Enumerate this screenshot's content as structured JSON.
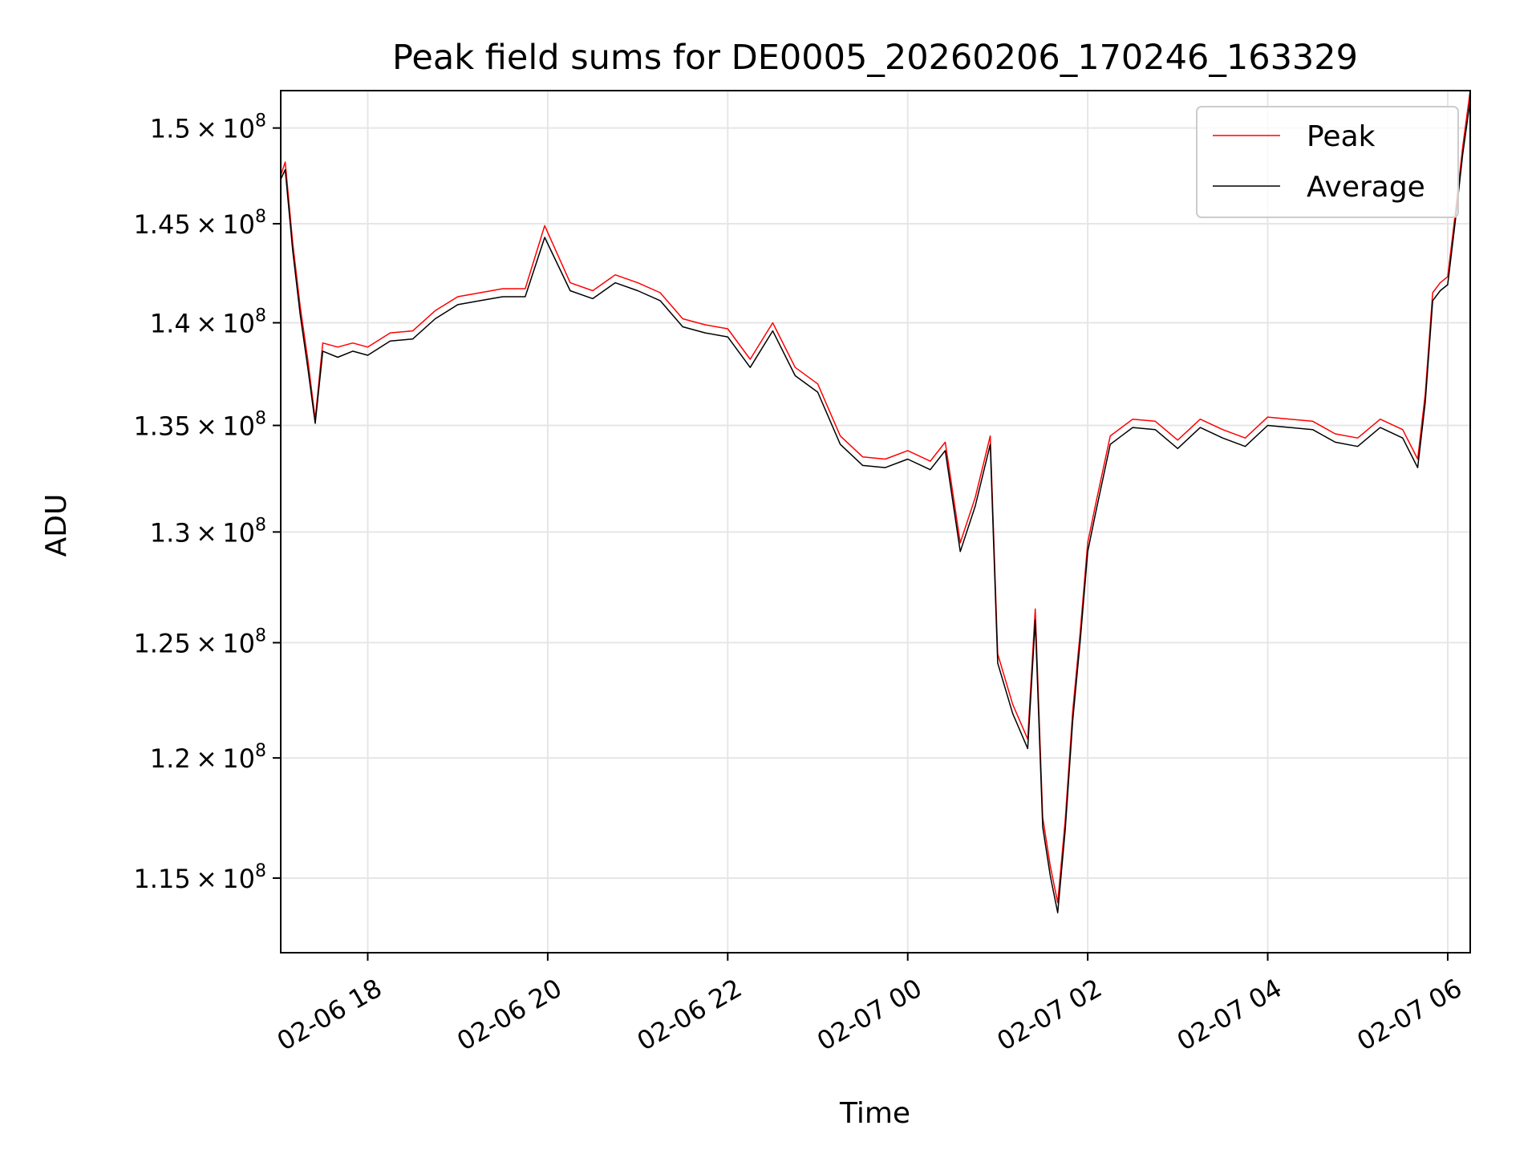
{
  "chart_data": {
    "type": "line",
    "title": "Peak field sums for DE0005_20260206_170246_163329",
    "xlabel": "Time",
    "ylabel": "ADU",
    "xlim": [
      "2026-02-06 17:02",
      "2026-02-07 06:15"
    ],
    "ylim": [
      112000000,
      152000000
    ],
    "y_scale": "log",
    "grid": true,
    "legend_position": "upper-right",
    "x_ticks": [
      {
        "value": "2026-02-06 18:00",
        "label": "02-06 18"
      },
      {
        "value": "2026-02-06 20:00",
        "label": "02-06 20"
      },
      {
        "value": "2026-02-06 22:00",
        "label": "02-06 22"
      },
      {
        "value": "2026-02-07 00:00",
        "label": "02-07 00"
      },
      {
        "value": "2026-02-07 02:00",
        "label": "02-07 02"
      },
      {
        "value": "2026-02-07 04:00",
        "label": "02-07 04"
      },
      {
        "value": "2026-02-07 06:00",
        "label": "02-07 06"
      }
    ],
    "y_ticks": [
      {
        "value": 115000000,
        "mantissa": "1.15",
        "exponent": "8"
      },
      {
        "value": 120000000,
        "mantissa": "1.2",
        "exponent": "8"
      },
      {
        "value": 125000000,
        "mantissa": "1.25",
        "exponent": "8"
      },
      {
        "value": 130000000,
        "mantissa": "1.3",
        "exponent": "8"
      },
      {
        "value": 135000000,
        "mantissa": "1.35",
        "exponent": "8"
      },
      {
        "value": 140000000,
        "mantissa": "1.4",
        "exponent": "8"
      },
      {
        "value": 145000000,
        "mantissa": "1.45",
        "exponent": "8"
      },
      {
        "value": 150000000,
        "mantissa": "1.5",
        "exponent": "8"
      }
    ],
    "series": [
      {
        "name": "Peak",
        "color": "#ff0000",
        "x": [
          "2026-02-06 17:02",
          "2026-02-06 17:05",
          "2026-02-06 17:10",
          "2026-02-06 17:15",
          "2026-02-06 17:20",
          "2026-02-06 17:25",
          "2026-02-06 17:30",
          "2026-02-06 17:40",
          "2026-02-06 17:50",
          "2026-02-06 18:00",
          "2026-02-06 18:15",
          "2026-02-06 18:30",
          "2026-02-06 18:45",
          "2026-02-06 19:00",
          "2026-02-06 19:15",
          "2026-02-06 19:30",
          "2026-02-06 19:45",
          "2026-02-06 19:58",
          "2026-02-06 20:15",
          "2026-02-06 20:30",
          "2026-02-06 20:45",
          "2026-02-06 21:00",
          "2026-02-06 21:15",
          "2026-02-06 21:30",
          "2026-02-06 21:45",
          "2026-02-06 22:00",
          "2026-02-06 22:15",
          "2026-02-06 22:30",
          "2026-02-06 22:45",
          "2026-02-06 23:00",
          "2026-02-06 23:15",
          "2026-02-06 23:30",
          "2026-02-06 23:45",
          "2026-02-07 00:00",
          "2026-02-07 00:15",
          "2026-02-07 00:25",
          "2026-02-07 00:35",
          "2026-02-07 00:45",
          "2026-02-07 00:55",
          "2026-02-07 01:00",
          "2026-02-07 01:10",
          "2026-02-07 01:20",
          "2026-02-07 01:25",
          "2026-02-07 01:30",
          "2026-02-07 01:35",
          "2026-02-07 01:40",
          "2026-02-07 01:45",
          "2026-02-07 01:50",
          "2026-02-07 01:55",
          "2026-02-07 02:00",
          "2026-02-07 02:05",
          "2026-02-07 02:15",
          "2026-02-07 02:30",
          "2026-02-07 02:45",
          "2026-02-07 03:00",
          "2026-02-07 03:15",
          "2026-02-07 03:30",
          "2026-02-07 03:45",
          "2026-02-07 04:00",
          "2026-02-07 04:15",
          "2026-02-07 04:30",
          "2026-02-07 04:45",
          "2026-02-07 05:00",
          "2026-02-07 05:15",
          "2026-02-07 05:30",
          "2026-02-07 05:40",
          "2026-02-07 05:45",
          "2026-02-07 05:50",
          "2026-02-07 05:55",
          "2026-02-07 06:00",
          "2026-02-07 06:05",
          "2026-02-07 06:10",
          "2026-02-07 06:15"
        ],
        "values": [
          147500000,
          148200000,
          144000000,
          140800000,
          138200000,
          135300000,
          139000000,
          138800000,
          139000000,
          138800000,
          139500000,
          139600000,
          140600000,
          141300000,
          141500000,
          141700000,
          141700000,
          144900000,
          142000000,
          141600000,
          142400000,
          142000000,
          141500000,
          140200000,
          139900000,
          139700000,
          138200000,
          140000000,
          137800000,
          137000000,
          134500000,
          133500000,
          133400000,
          133800000,
          133300000,
          134200000,
          129500000,
          131600000,
          134500000,
          124500000,
          122300000,
          120800000,
          126500000,
          117500000,
          115500000,
          114000000,
          117400000,
          122000000,
          125500000,
          129500000,
          131200000,
          134500000,
          135300000,
          135200000,
          134300000,
          135300000,
          134800000,
          134400000,
          135400000,
          135300000,
          135200000,
          134600000,
          134400000,
          135300000,
          134800000,
          133400000,
          136500000,
          141500000,
          142000000,
          142300000,
          145500000,
          149000000,
          152000000
        ]
      },
      {
        "name": "Average",
        "color": "#000000",
        "x": [
          "2026-02-06 17:02",
          "2026-02-06 17:05",
          "2026-02-06 17:10",
          "2026-02-06 17:15",
          "2026-02-06 17:20",
          "2026-02-06 17:25",
          "2026-02-06 17:30",
          "2026-02-06 17:40",
          "2026-02-06 17:50",
          "2026-02-06 18:00",
          "2026-02-06 18:15",
          "2026-02-06 18:30",
          "2026-02-06 18:45",
          "2026-02-06 19:00",
          "2026-02-06 19:15",
          "2026-02-06 19:30",
          "2026-02-06 19:45",
          "2026-02-06 19:58",
          "2026-02-06 20:15",
          "2026-02-06 20:30",
          "2026-02-06 20:45",
          "2026-02-06 21:00",
          "2026-02-06 21:15",
          "2026-02-06 21:30",
          "2026-02-06 21:45",
          "2026-02-06 22:00",
          "2026-02-06 22:15",
          "2026-02-06 22:30",
          "2026-02-06 22:45",
          "2026-02-06 23:00",
          "2026-02-06 23:15",
          "2026-02-06 23:30",
          "2026-02-06 23:45",
          "2026-02-07 00:00",
          "2026-02-07 00:15",
          "2026-02-07 00:25",
          "2026-02-07 00:35",
          "2026-02-07 00:45",
          "2026-02-07 00:55",
          "2026-02-07 01:00",
          "2026-02-07 01:10",
          "2026-02-07 01:20",
          "2026-02-07 01:25",
          "2026-02-07 01:30",
          "2026-02-07 01:35",
          "2026-02-07 01:40",
          "2026-02-07 01:45",
          "2026-02-07 01:50",
          "2026-02-07 01:55",
          "2026-02-07 02:00",
          "2026-02-07 02:05",
          "2026-02-07 02:15",
          "2026-02-07 02:30",
          "2026-02-07 02:45",
          "2026-02-07 03:00",
          "2026-02-07 03:15",
          "2026-02-07 03:30",
          "2026-02-07 03:45",
          "2026-02-07 04:00",
          "2026-02-07 04:15",
          "2026-02-07 04:30",
          "2026-02-07 04:45",
          "2026-02-07 05:00",
          "2026-02-07 05:15",
          "2026-02-07 05:30",
          "2026-02-07 05:40",
          "2026-02-07 05:45",
          "2026-02-07 05:50",
          "2026-02-07 05:55",
          "2026-02-07 06:00",
          "2026-02-07 06:05",
          "2026-02-07 06:10",
          "2026-02-07 06:15"
        ],
        "values": [
          147300000,
          147800000,
          143600000,
          140400000,
          137800000,
          135100000,
          138600000,
          138300000,
          138600000,
          138400000,
          139100000,
          139200000,
          140200000,
          140900000,
          141100000,
          141300000,
          141300000,
          144300000,
          141600000,
          141200000,
          142000000,
          141600000,
          141100000,
          139800000,
          139500000,
          139300000,
          137800000,
          139600000,
          137400000,
          136600000,
          134100000,
          133100000,
          133000000,
          133400000,
          132900000,
          133800000,
          129100000,
          131200000,
          134100000,
          124100000,
          121900000,
          120400000,
          126000000,
          117100000,
          115100000,
          113600000,
          117000000,
          121600000,
          125100000,
          129100000,
          130800000,
          134100000,
          134900000,
          134800000,
          133900000,
          134900000,
          134400000,
          134000000,
          135000000,
          134900000,
          134800000,
          134200000,
          134000000,
          134900000,
          134400000,
          133000000,
          136100000,
          141100000,
          141600000,
          141900000,
          145100000,
          148600000,
          151500000
        ]
      }
    ]
  }
}
